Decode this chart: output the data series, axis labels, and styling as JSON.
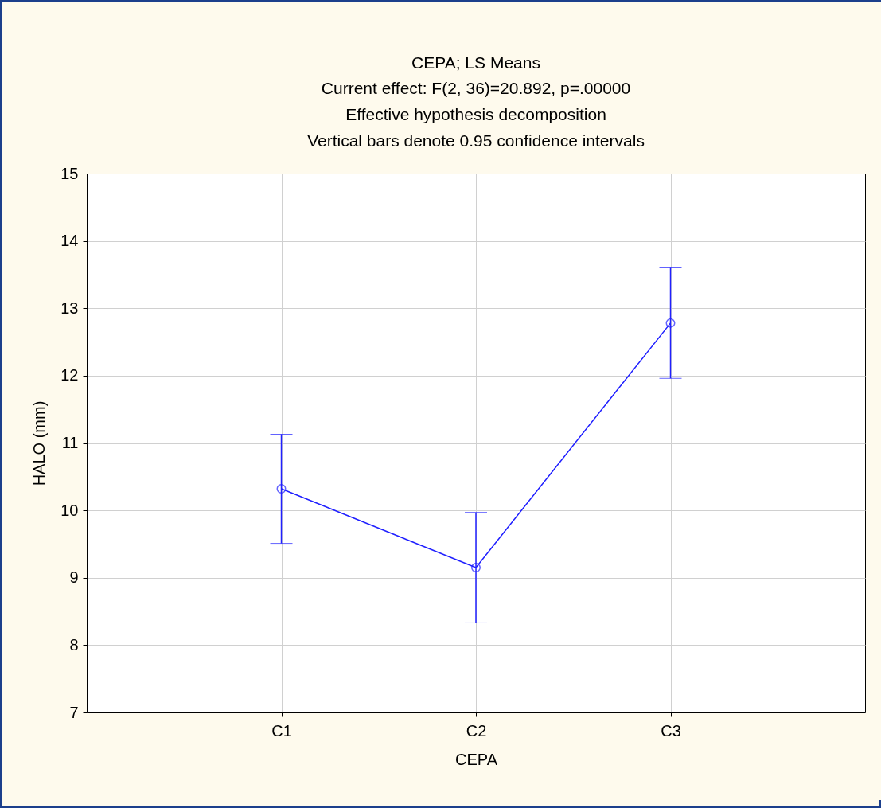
{
  "chart_data": {
    "type": "line",
    "title": "CEPA; LS Means",
    "subtitle": "Current effect: F(2, 36)=20.892, p=.00000\nEffective hypothesis decomposition\nVertical bars denote 0.95 confidence intervals",
    "xlabel": "CEPA",
    "ylabel": "HALO (mm)",
    "categories": [
      "C1",
      "C2",
      "C3"
    ],
    "series": [
      {
        "color": "#2020ff",
        "values": [
          10.32,
          9.15,
          12.78
        ],
        "errors": [
          0.81,
          0.82,
          0.82
        ]
      }
    ],
    "ylim": [
      7,
      15
    ],
    "yticks": [
      7,
      8,
      9,
      10,
      11,
      12,
      13,
      14,
      15
    ],
    "grid": true,
    "marker": "circle",
    "line_style": "solid"
  }
}
